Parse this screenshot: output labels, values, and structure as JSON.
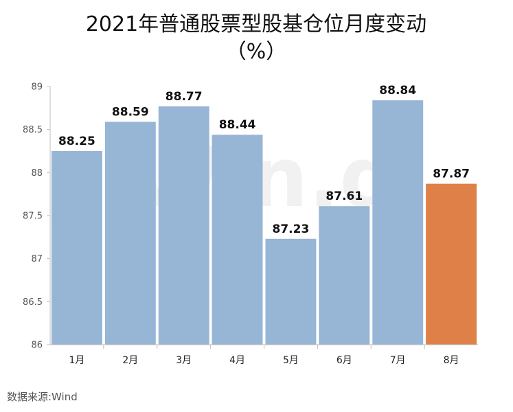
{
  "chart_data": {
    "type": "bar",
    "title": "2021年普通股票型股基仓位月度变动",
    "subtitle": "（%）",
    "categories": [
      "1月",
      "2月",
      "3月",
      "4月",
      "5月",
      "6月",
      "7月",
      "8月"
    ],
    "values": [
      88.25,
      88.59,
      88.77,
      88.44,
      87.23,
      87.61,
      88.84,
      87.87
    ],
    "value_labels": [
      "88.25",
      "88.59",
      "88.77",
      "88.44",
      "87.23",
      "87.61",
      "88.84",
      "87.87"
    ],
    "ylim": [
      86,
      89
    ],
    "yticks": [
      86,
      86.5,
      87,
      87.5,
      88,
      88.5,
      89
    ],
    "ytick_labels": [
      "86",
      "86.5",
      "87",
      "87.5",
      "88",
      "88.5",
      "89"
    ],
    "xlabel": "",
    "ylabel": "",
    "grid": false,
    "legend": "none",
    "colors": {
      "bar": "#97b5d5",
      "highlight": "#de8047",
      "axis": "#bfbfbf"
    },
    "highlight_index": 7
  },
  "watermark": "Win.d",
  "source": "数据来源:Wind"
}
